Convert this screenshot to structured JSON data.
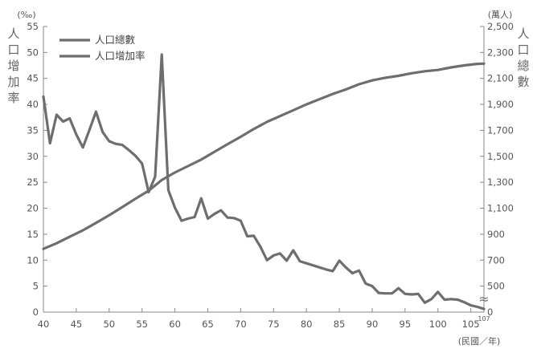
{
  "chart_data": {
    "type": "line",
    "x_unit_label": "(民國／年)",
    "left_axis": {
      "label_chars": [
        "人",
        "口",
        "增",
        "加",
        "率"
      ],
      "unit": "(‰)",
      "ticks": [
        0,
        5,
        10,
        15,
        20,
        25,
        30,
        35,
        40,
        45,
        50,
        55
      ],
      "tick_labels": [
        "0",
        "5",
        "10",
        "15",
        "20",
        "25",
        "30",
        "35",
        "40",
        "45",
        "50",
        "55"
      ],
      "ylim": [
        0,
        55
      ]
    },
    "right_axis": {
      "label_chars": [
        "人",
        "口",
        "總",
        "數"
      ],
      "unit": "(萬人)",
      "ticks": [
        0,
        500,
        700,
        900,
        1100,
        1300,
        1500,
        1700,
        1900,
        2100,
        2300,
        2500
      ],
      "tick_labels": [
        "0",
        "500",
        "700",
        "900",
        "1,100",
        "1,300",
        "1,500",
        "1,700",
        "1,900",
        "2,100",
        "2,300",
        "2,500"
      ],
      "break_symbol": "≈"
    },
    "x_axis": {
      "ticks": [
        40,
        45,
        50,
        55,
        60,
        65,
        70,
        75,
        80,
        85,
        90,
        95,
        100,
        105
      ],
      "tick_labels": [
        "40",
        "45",
        "50",
        "55",
        "60",
        "65",
        "70",
        "75",
        "80",
        "85",
        "90",
        "95",
        "100",
        "105"
      ],
      "end_value": 107,
      "end_label": "107",
      "xlim": [
        40,
        107
      ]
    },
    "legend": {
      "position": "top-left"
    },
    "series": [
      {
        "name": "人口總數",
        "axis": "right",
        "color": "#6e6e6e",
        "x": [
          40,
          42,
          44,
          46,
          48,
          50,
          52,
          54,
          56,
          58,
          60,
          62,
          64,
          66,
          68,
          70,
          72,
          74,
          76,
          78,
          80,
          82,
          84,
          86,
          88,
          90,
          92,
          94,
          96,
          98,
          100,
          102,
          104,
          106,
          107
        ],
        "y": [
          787,
          830,
          880,
          930,
          987,
          1046,
          1109,
          1173,
          1235,
          1317,
          1375,
          1425,
          1475,
          1535,
          1593,
          1650,
          1710,
          1765,
          1810,
          1855,
          1900,
          1940,
          1980,
          2015,
          2055,
          2085,
          2105,
          2120,
          2140,
          2155,
          2165,
          2185,
          2200,
          2212,
          2214
        ]
      },
      {
        "name": "人口增加率",
        "axis": "left",
        "color": "#6e6e6e",
        "x": [
          40,
          41,
          42,
          43,
          44,
          45,
          46,
          47,
          48,
          49,
          50,
          51,
          52,
          53,
          54,
          55,
          56,
          57,
          58,
          59,
          60,
          61,
          62,
          63,
          64,
          65,
          66,
          67,
          68,
          69,
          70,
          71,
          72,
          73,
          74,
          75,
          76,
          77,
          78,
          79,
          80,
          81,
          82,
          83,
          84,
          85,
          86,
          87,
          88,
          89,
          90,
          91,
          92,
          93,
          94,
          95,
          96,
          97,
          98,
          99,
          100,
          101,
          102,
          103,
          104,
          105,
          106,
          107
        ],
        "y": [
          41.5,
          32.5,
          38.0,
          36.7,
          37.3,
          34.2,
          31.7,
          35.1,
          38.6,
          34.7,
          32.9,
          32.4,
          32.2,
          31.2,
          30.1,
          28.6,
          23.1,
          26.1,
          49.6,
          23.5,
          20.1,
          17.6,
          18.0,
          18.3,
          21.9,
          18.0,
          18.9,
          19.6,
          18.2,
          18.1,
          17.6,
          14.6,
          14.7,
          12.6,
          10.0,
          10.9,
          11.3,
          9.9,
          11.9,
          9.8,
          9.4,
          9.0,
          8.6,
          8.2,
          7.9,
          9.9,
          8.6,
          7.5,
          8.0,
          5.5,
          5.0,
          3.7,
          3.6,
          3.6,
          4.6,
          3.5,
          3.4,
          3.5,
          1.8,
          2.5,
          3.9,
          2.4,
          2.5,
          2.4,
          1.9,
          1.3,
          1.0,
          0.6
        ]
      }
    ]
  }
}
